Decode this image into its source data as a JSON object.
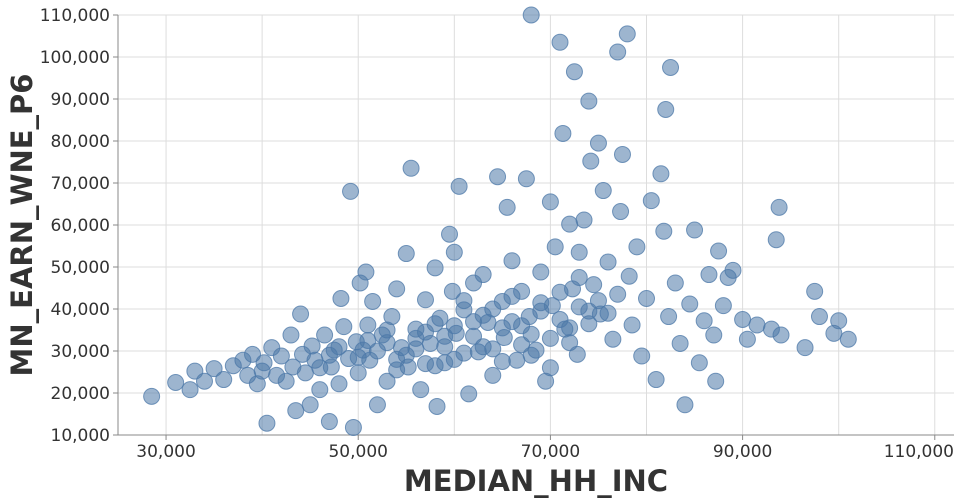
{
  "chart_data": {
    "type": "scatter",
    "xlabel": "MEDIAN_HH_INC",
    "ylabel": "MN_EARN_WNE_P6",
    "xlim": [
      25000,
      112000
    ],
    "ylim": [
      10000,
      110000
    ],
    "x_ticks": [
      30000,
      50000,
      70000,
      90000,
      110000
    ],
    "x_tick_labels": [
      "30,000",
      "50,000",
      "70,000",
      "90,000",
      "110,000"
    ],
    "y_ticks": [
      10000,
      20000,
      30000,
      40000,
      50000,
      60000,
      70000,
      80000,
      90000,
      100000,
      110000
    ],
    "y_tick_labels": [
      "10,000",
      "20,000",
      "30,000",
      "40,000",
      "50,000",
      "60,000",
      "70,000",
      "80,000",
      "90,000",
      "100,000",
      "110,000"
    ],
    "grid": true,
    "marker_color": "#4c78a8",
    "points": [
      [
        28500,
        19200
      ],
      [
        31000,
        22500
      ],
      [
        32500,
        20800
      ],
      [
        33000,
        25200
      ],
      [
        34000,
        22800
      ],
      [
        35000,
        25800
      ],
      [
        36000,
        23200
      ],
      [
        37000,
        26500
      ],
      [
        38000,
        27800
      ],
      [
        38500,
        24200
      ],
      [
        39000,
        29200
      ],
      [
        39500,
        22200
      ],
      [
        40000,
        25200
      ],
      [
        40200,
        27200
      ],
      [
        40500,
        12800
      ],
      [
        41000,
        30800
      ],
      [
        41500,
        24200
      ],
      [
        42000,
        28800
      ],
      [
        42500,
        22800
      ],
      [
        43000,
        33800
      ],
      [
        43200,
        26200
      ],
      [
        43500,
        15800
      ],
      [
        44000,
        38800
      ],
      [
        44200,
        29200
      ],
      [
        44500,
        24800
      ],
      [
        45000,
        17200
      ],
      [
        45200,
        31200
      ],
      [
        45500,
        27800
      ],
      [
        46000,
        20800
      ],
      [
        46500,
        33800
      ],
      [
        47000,
        13200
      ],
      [
        47200,
        26200
      ],
      [
        47500,
        30200
      ],
      [
        48000,
        22200
      ],
      [
        48200,
        42500
      ],
      [
        48500,
        35800
      ],
      [
        49000,
        28200
      ],
      [
        49200,
        68000
      ],
      [
        49500,
        11800
      ],
      [
        49800,
        32200
      ],
      [
        50000,
        24800
      ],
      [
        50200,
        46200
      ],
      [
        50500,
        30200
      ],
      [
        50800,
        48800
      ],
      [
        51000,
        36200
      ],
      [
        51200,
        27800
      ],
      [
        51500,
        41800
      ],
      [
        52000,
        17200
      ],
      [
        52500,
        33800
      ],
      [
        53000,
        22800
      ],
      [
        53500,
        38200
      ],
      [
        54000,
        44800
      ],
      [
        54500,
        30800
      ],
      [
        55000,
        53200
      ],
      [
        55200,
        26200
      ],
      [
        55500,
        73500
      ],
      [
        56000,
        35200
      ],
      [
        56500,
        20800
      ],
      [
        57000,
        42200
      ],
      [
        57500,
        31800
      ],
      [
        58000,
        49800
      ],
      [
        58200,
        16800
      ],
      [
        58500,
        37800
      ],
      [
        59000,
        27200
      ],
      [
        59500,
        57800
      ],
      [
        59800,
        44200
      ],
      [
        60000,
        53500
      ],
      [
        60200,
        34200
      ],
      [
        60500,
        69200
      ],
      [
        61000,
        39800
      ],
      [
        61500,
        19800
      ],
      [
        62000,
        46200
      ],
      [
        62500,
        29800
      ],
      [
        63000,
        48200
      ],
      [
        63500,
        36800
      ],
      [
        64000,
        24200
      ],
      [
        64500,
        71500
      ],
      [
        65000,
        41800
      ],
      [
        65200,
        33200
      ],
      [
        65500,
        64200
      ],
      [
        66000,
        51500
      ],
      [
        66500,
        27800
      ],
      [
        67000,
        44200
      ],
      [
        67500,
        71000
      ],
      [
        67800,
        38200
      ],
      [
        68000,
        110000
      ],
      [
        68500,
        30200
      ],
      [
        69000,
        48800
      ],
      [
        69500,
        22800
      ],
      [
        70000,
        65500
      ],
      [
        70200,
        40800
      ],
      [
        70500,
        54800
      ],
      [
        71000,
        103500
      ],
      [
        71300,
        81800
      ],
      [
        71500,
        35200
      ],
      [
        72000,
        60200
      ],
      [
        72300,
        44800
      ],
      [
        72500,
        96500
      ],
      [
        72800,
        29200
      ],
      [
        73000,
        53500
      ],
      [
        73500,
        61200
      ],
      [
        74000,
        89500
      ],
      [
        74200,
        75200
      ],
      [
        74500,
        45800
      ],
      [
        75000,
        79500
      ],
      [
        75200,
        38800
      ],
      [
        75500,
        68200
      ],
      [
        76000,
        51200
      ],
      [
        76500,
        32800
      ],
      [
        77000,
        101200
      ],
      [
        77300,
        63200
      ],
      [
        77500,
        76800
      ],
      [
        78000,
        105500
      ],
      [
        78200,
        47800
      ],
      [
        78500,
        36200
      ],
      [
        79000,
        54800
      ],
      [
        79500,
        28800
      ],
      [
        80000,
        42500
      ],
      [
        80500,
        65800
      ],
      [
        81000,
        23200
      ],
      [
        81500,
        72200
      ],
      [
        81800,
        58500
      ],
      [
        82000,
        87500
      ],
      [
        82300,
        38200
      ],
      [
        82500,
        97500
      ],
      [
        83000,
        46200
      ],
      [
        83500,
        31800
      ],
      [
        84000,
        17200
      ],
      [
        84500,
        41200
      ],
      [
        85000,
        58800
      ],
      [
        85500,
        27200
      ],
      [
        86000,
        37200
      ],
      [
        86500,
        48200
      ],
      [
        87000,
        33800
      ],
      [
        87200,
        22800
      ],
      [
        87500,
        53800
      ],
      [
        88000,
        40800
      ],
      [
        88500,
        47500
      ],
      [
        89000,
        49200
      ],
      [
        90000,
        37500
      ],
      [
        90500,
        32800
      ],
      [
        91500,
        36200
      ],
      [
        93000,
        35200
      ],
      [
        93500,
        56500
      ],
      [
        93800,
        64200
      ],
      [
        94000,
        33800
      ],
      [
        96500,
        30800
      ],
      [
        97500,
        44200
      ],
      [
        98000,
        38200
      ],
      [
        99500,
        34200
      ],
      [
        100000,
        37200
      ],
      [
        101000,
        32800
      ],
      [
        53000,
        32000
      ],
      [
        54000,
        28000
      ],
      [
        56000,
        30500
      ],
      [
        57000,
        34500
      ],
      [
        58000,
        26500
      ],
      [
        59000,
        31000
      ],
      [
        60000,
        36000
      ],
      [
        61000,
        29500
      ],
      [
        62000,
        33500
      ],
      [
        63000,
        38500
      ],
      [
        64000,
        30500
      ],
      [
        65000,
        35500
      ],
      [
        66000,
        37000
      ],
      [
        67000,
        31500
      ],
      [
        68000,
        34000
      ],
      [
        69000,
        39500
      ],
      [
        70000,
        33000
      ],
      [
        71000,
        37500
      ],
      [
        72000,
        35500
      ],
      [
        73000,
        40500
      ],
      [
        74000,
        36500
      ],
      [
        75000,
        42000
      ],
      [
        76000,
        39000
      ],
      [
        77000,
        43500
      ],
      [
        46000,
        26000
      ],
      [
        47000,
        29000
      ],
      [
        48000,
        31000
      ],
      [
        50000,
        28500
      ],
      [
        51000,
        32500
      ],
      [
        52000,
        30000
      ],
      [
        53000,
        35000
      ],
      [
        54000,
        25500
      ],
      [
        55000,
        29000
      ],
      [
        56000,
        33000
      ],
      [
        57000,
        27000
      ],
      [
        58000,
        36500
      ],
      [
        59000,
        33500
      ],
      [
        60000,
        28000
      ],
      [
        61000,
        42000
      ],
      [
        62000,
        37000
      ],
      [
        63000,
        31000
      ],
      [
        64000,
        40000
      ],
      [
        65000,
        27500
      ],
      [
        66000,
        43000
      ],
      [
        67000,
        36000
      ],
      [
        68000,
        29000
      ],
      [
        69000,
        41500
      ],
      [
        70000,
        26000
      ],
      [
        71000,
        44000
      ],
      [
        72000,
        32000
      ],
      [
        73000,
        47500
      ],
      [
        74000,
        39500
      ]
    ]
  }
}
